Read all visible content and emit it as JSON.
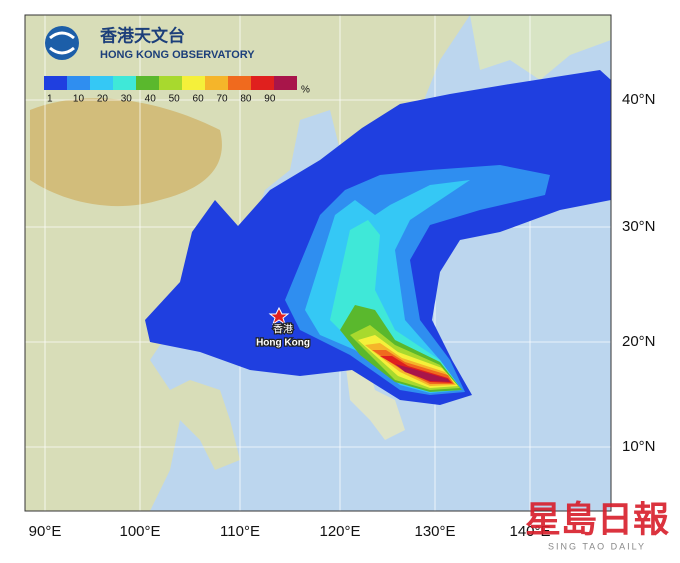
{
  "header": {
    "title_zh": "香港天文台",
    "title_en": "HONG KONG OBSERVATORY"
  },
  "legend": {
    "labels": [
      1,
      10,
      20,
      30,
      40,
      50,
      60,
      70,
      80,
      90
    ],
    "unit": "%"
  },
  "axes": {
    "latitude": [
      "40°N",
      "30°N",
      "20°N",
      "10°N"
    ],
    "longitude": [
      "90°E",
      "100°E",
      "110°E",
      "120°E",
      "130°E",
      "140°E"
    ]
  },
  "marker": {
    "label_zh": "香港",
    "label_en": "Hong Kong"
  },
  "watermark": {
    "text": "星島日報",
    "subtext": "SING TAO DAILY"
  }
}
